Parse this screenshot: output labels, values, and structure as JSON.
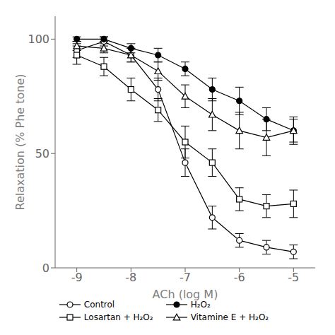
{
  "chart_data": {
    "type": "line",
    "x_label": "ACh (log M)",
    "y_label": "Relaxation (% Phe tone)",
    "x": [
      -9,
      -8.5,
      -8,
      -7.5,
      -7,
      -6.5,
      -6,
      -5.5,
      -5
    ],
    "series": [
      {
        "name": "Control",
        "color": "black",
        "marker": "circle",
        "values": [
          95,
          99,
          93,
          78,
          46,
          22,
          12,
          9,
          7
        ],
        "errors": [
          3,
          2,
          3,
          5,
          6,
          5,
          3,
          3,
          3
        ]
      },
      {
        "name": "H₂O₂",
        "color": "black",
        "marker": "filled_circle",
        "values": [
          100,
          100,
          96,
          93,
          87,
          78,
          73,
          65,
          60
        ],
        "errors": [
          1,
          1,
          2,
          3,
          3,
          5,
          6,
          5,
          5
        ]
      },
      {
        "name": "Losartan + H₂O₂",
        "color": "black",
        "marker": "square",
        "values": [
          93,
          88,
          78,
          69,
          55,
          46,
          30,
          27,
          28
        ],
        "errors": [
          4,
          4,
          5,
          5,
          7,
          6,
          5,
          5,
          6
        ]
      },
      {
        "name": "Vitamine E + H₂O₂",
        "color": "black",
        "marker": "triangle",
        "values": [
          97,
          96,
          93,
          86,
          75,
          67,
          60,
          57,
          60
        ],
        "errors": [
          2,
          2,
          3,
          4,
          5,
          7,
          8,
          8,
          6
        ]
      }
    ],
    "xlim": [
      -9.4,
      -4.6
    ],
    "ylim": [
      0,
      110
    ],
    "xticks": [
      -9,
      -8,
      -7,
      -6,
      -5
    ],
    "yticks": [
      0,
      50,
      100
    ],
    "grid": false,
    "legend": "bottom"
  }
}
